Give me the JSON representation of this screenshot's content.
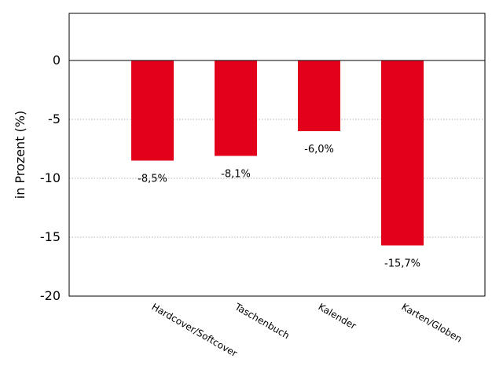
{
  "chart_data": {
    "type": "bar",
    "title": "",
    "xlabel": "",
    "ylabel": "in Prozent (%)",
    "ylim": [
      -20,
      4
    ],
    "yticks": [
      0,
      -5,
      -10,
      -15,
      -20
    ],
    "ytick_labels": [
      "0",
      "-5",
      "-10",
      "-15",
      "-20"
    ],
    "categories": [
      "Hardcover/Softcover",
      "Taschenbuch",
      "Kalender",
      "Karten/Globen"
    ],
    "series": [
      {
        "values": [
          -8.5,
          -8.1,
          -6.0,
          -15.7
        ],
        "labels": [
          "-8,5%",
          "-8,1%",
          "-6,0%",
          "-15,7%"
        ],
        "color": "#e2001a"
      }
    ],
    "grid": "horizontal-dotted",
    "zero_line": true
  }
}
